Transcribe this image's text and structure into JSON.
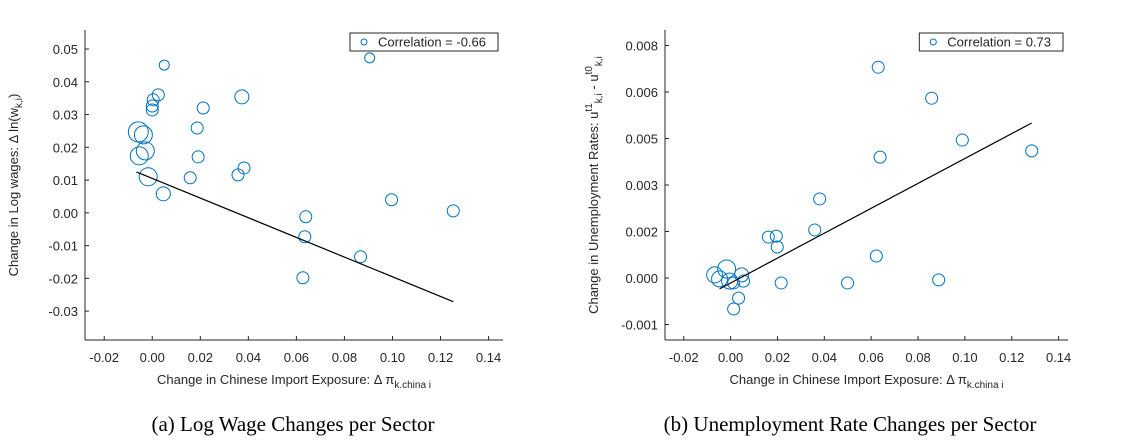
{
  "chart_data": [
    {
      "type": "scatter",
      "caption": "(a) Log Wage Changes per Sector",
      "x_label": [
        {
          "text": "Change in Chinese Import Exposure: Δ π"
        },
        {
          "text": "k.china i",
          "shift": "sub"
        }
      ],
      "y_label": [
        {
          "text": "Change in Log wages: Δ ln(w"
        },
        {
          "text": "k,i",
          "shift": "sub"
        },
        {
          "text": ")"
        }
      ],
      "xlim": [
        -0.028,
        0.146
      ],
      "ylim": [
        -0.0388,
        0.0558
      ],
      "xticks": [
        -0.02,
        {
          "value": 0,
          "label": "0.00"
        },
        0.02,
        0.04,
        0.06,
        0.08,
        {
          "value": 0.1,
          "label": "0.10"
        },
        0.12,
        0.14
      ],
      "yticks": [
        -0.03,
        -0.02,
        -0.01,
        {
          "value": 0,
          "label": "0.00"
        },
        0.01,
        0.02,
        0.03,
        0.04,
        0.05
      ],
      "legend": "northeast",
      "x": [
        0.005,
        0.0905,
        0.0025,
        0.0004,
        0,
        0,
        0.0212,
        0.0373,
        0.0187,
        -0.0058,
        -0.0037,
        -0.0029,
        -0.0054,
        0.0191,
        -0.0017,
        0.0158,
        0.0382,
        0.0357,
        0.0046,
        0.0639,
        0.0635,
        0.0627,
        0.0867,
        0.0996,
        0.1253
      ],
      "series": [
        {
          "name": "Correlation = -0.66",
          "color": "#0072bd",
          "values": [
            0.0451,
            0.0473,
            0.036,
            0.0345,
            0.0326,
            0.0314,
            0.032,
            0.0354,
            0.0259,
            0.0247,
            0.0238,
            0.0189,
            0.0174,
            0.0171,
            0.011,
            0.0107,
            0.0137,
            0.0116,
            0.0058,
            -0.0012,
            -0.0073,
            -0.0198,
            -0.0134,
            0.004,
            0.0006
          ],
          "sizes": [
            5,
            5,
            6,
            6,
            6,
            6,
            6,
            7,
            6,
            10,
            9,
            9,
            9,
            6,
            9,
            6,
            6,
            6,
            7,
            6,
            6,
            6,
            6,
            6,
            6
          ]
        }
      ],
      "fit_line": {
        "color": "#000000",
        "x": [
          -0.0066,
          0.1253
        ],
        "y": [
          0.0125,
          -0.0271
        ]
      }
    },
    {
      "type": "scatter",
      "caption": "(b) Unemployment Rate Changes per Sector",
      "x_label": [
        {
          "text": "Change in Chinese Import Exposure: Δ π"
        },
        {
          "text": "k.china i",
          "shift": "sub"
        }
      ],
      "y_label": [
        {
          "text": "Change in Unemployment Rates: u"
        },
        {
          "text": "t1",
          "shift": "super"
        },
        {
          "text": "k,i",
          "shift": "sub"
        },
        {
          "text": " - u"
        },
        {
          "text": "t0",
          "shift": "super"
        },
        {
          "text": "k,i",
          "shift": "sub"
        }
      ],
      "xlim": [
        -0.028,
        0.144
      ],
      "ylim": [
        -0.002,
        0.008
      ],
      "xticks": [
        -0.02,
        {
          "value": 0,
          "label": "0.00"
        },
        0.02,
        0.04,
        0.06,
        0.08,
        {
          "value": 0.1,
          "label": "0.10"
        },
        0.12,
        0.14
      ],
      "yticks": [
        {
          "value": -0.0015,
          "label": "-0.001"
        },
        {
          "value": 0,
          "label": "0.000"
        },
        {
          "value": 0.0015,
          "label": "0.002"
        },
        0.003,
        {
          "value": 0.0045,
          "label": "0.005"
        },
        0.006,
        {
          "value": 0.0075,
          "label": "0.008"
        }
      ],
      "legend": "northeast",
      "x": [
        0.063,
        0.0858,
        0.0989,
        0.1285,
        0.0638,
        0.038,
        0.0359,
        0.0161,
        0.0195,
        0.0199,
        0.0622,
        -0.0068,
        -0.0017,
        -0.0047,
        -0.0004,
        0.0047,
        0.0055,
        0.0013,
        0.0034,
        0.0013,
        0.0216,
        0.0499,
        0.0888
      ],
      "series": [
        {
          "name": "Correlation = 0.73",
          "color": "#0072bd",
          "values": [
            0.0068,
            0.0058,
            0.00445,
            0.0041,
            0.0039,
            0.00255,
            0.00155,
            0.00132,
            0.00135,
            0.001,
            0.00071,
            0.0001,
            0.00029,
            -3e-05,
            -0.0001,
            0.0001,
            -0.0001,
            -0.00016,
            -0.00065,
            -0.001,
            -0.00016,
            -0.00016,
            -6e-05
          ],
          "sizes": [
            6,
            6,
            6,
            6,
            6,
            6,
            6,
            6,
            6,
            6,
            6,
            8,
            9,
            8,
            8,
            7,
            6,
            6,
            6,
            6,
            6,
            6,
            6
          ]
        }
      ],
      "fit_line": {
        "color": "#000000",
        "x": [
          -0.0047,
          0.1285
        ],
        "y": [
          -0.00035,
          0.005
        ]
      }
    }
  ]
}
